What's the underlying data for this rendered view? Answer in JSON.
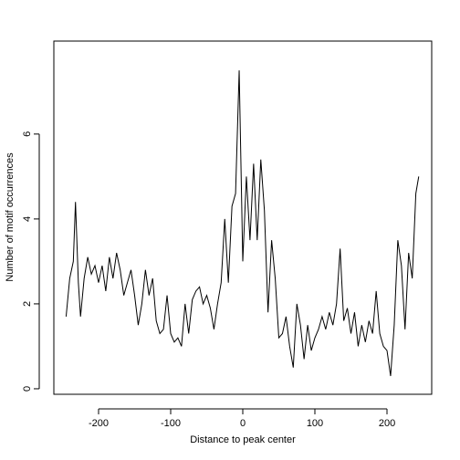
{
  "chart_data": {
    "type": "line",
    "xlabel": "Distance to peak center",
    "ylabel": "Number of motif occurrences",
    "x": [
      -245,
      -240,
      -235,
      -232,
      -228,
      -225,
      -220,
      -215,
      -210,
      -205,
      -200,
      -195,
      -190,
      -185,
      -180,
      -175,
      -170,
      -165,
      -160,
      -155,
      -150,
      -145,
      -140,
      -135,
      -130,
      -125,
      -120,
      -115,
      -110,
      -105,
      -100,
      -95,
      -90,
      -85,
      -80,
      -75,
      -70,
      -65,
      -60,
      -55,
      -50,
      -45,
      -40,
      -35,
      -30,
      -25,
      -20,
      -15,
      -10,
      -5,
      0,
      5,
      10,
      15,
      20,
      25,
      30,
      35,
      40,
      45,
      50,
      55,
      60,
      65,
      70,
      75,
      80,
      85,
      90,
      95,
      100,
      105,
      110,
      115,
      120,
      125,
      130,
      135,
      140,
      145,
      150,
      155,
      160,
      165,
      170,
      175,
      180,
      185,
      190,
      195,
      200,
      205,
      210,
      215,
      220,
      225,
      230,
      235,
      240,
      244
    ],
    "series": [
      {
        "color": "#000000",
        "values": [
          1.7,
          2.6,
          3.0,
          4.4,
          2.5,
          1.7,
          2.6,
          3.1,
          2.7,
          2.9,
          2.5,
          2.9,
          2.3,
          3.1,
          2.6,
          3.2,
          2.8,
          2.2,
          2.5,
          2.8,
          2.2,
          1.5,
          2.0,
          2.8,
          2.2,
          2.6,
          1.6,
          1.3,
          1.4,
          2.2,
          1.3,
          1.1,
          1.2,
          1.0,
          2.0,
          1.3,
          2.1,
          2.3,
          2.4,
          2.0,
          2.2,
          1.9,
          1.4,
          2.0,
          2.5,
          4.0,
          2.5,
          4.3,
          4.6,
          7.5,
          3.0,
          5.0,
          3.5,
          5.3,
          3.5,
          5.4,
          4.2,
          1.8,
          3.5,
          2.6,
          1.2,
          1.3,
          1.7,
          1.0,
          0.5,
          2.0,
          1.5,
          0.7,
          1.5,
          0.9,
          1.2,
          1.4,
          1.7,
          1.4,
          1.8,
          1.5,
          2.0,
          3.3,
          1.6,
          1.9,
          1.3,
          1.8,
          1.0,
          1.5,
          1.1,
          1.6,
          1.3,
          2.3,
          1.3,
          1.0,
          0.9,
          0.3,
          1.5,
          3.5,
          2.9,
          1.4,
          3.2,
          2.6,
          4.6,
          5.0
        ]
      }
    ],
    "xlim": [
      -262,
      262
    ],
    "ylim": [
      -0.13,
      8.19
    ],
    "xticks": [
      -200,
      -100,
      0,
      100,
      200
    ],
    "yticks": [
      0,
      2,
      4,
      6
    ]
  }
}
